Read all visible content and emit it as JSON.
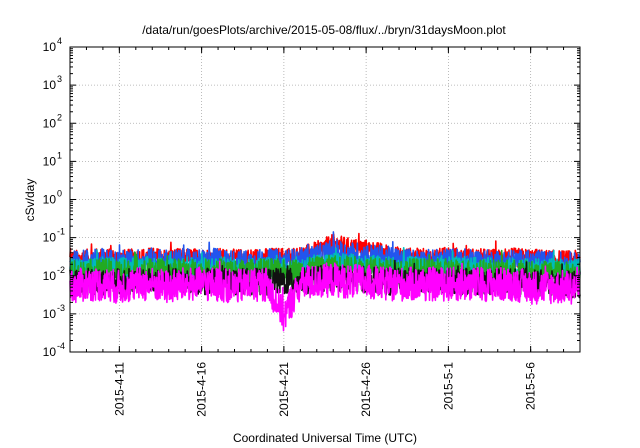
{
  "chart_data": {
    "type": "line",
    "title": "/data/run/goesPlots/archive/2015-05-08/flux/../bryn/31daysMoon.plot",
    "xlabel": "Coordinated Universal Time (UTC)",
    "ylabel": "cSv/day",
    "yscale": "log",
    "ylim": [
      0.0001,
      10000
    ],
    "xlim": [
      "2015-04-08",
      "2015-05-09"
    ],
    "grid": true,
    "y_ticks": [
      {
        "base": "10",
        "exp": "-4",
        "value": 0.0001
      },
      {
        "base": "10",
        "exp": "-3",
        "value": 0.001
      },
      {
        "base": "10",
        "exp": "-2",
        "value": 0.01
      },
      {
        "base": "10",
        "exp": "-1",
        "value": 0.1
      },
      {
        "base": "10",
        "exp": "0",
        "value": 1
      },
      {
        "base": "10",
        "exp": "1",
        "value": 10
      },
      {
        "base": "10",
        "exp": "2",
        "value": 100
      },
      {
        "base": "10",
        "exp": "3",
        "value": 1000
      },
      {
        "base": "10",
        "exp": "4",
        "value": 10000
      }
    ],
    "x_ticks": [
      {
        "label": "2015-4-11",
        "day": 3
      },
      {
        "label": "2015-4-16",
        "day": 8
      },
      {
        "label": "2015-4-21",
        "day": 13
      },
      {
        "label": "2015-4-26",
        "day": 18
      },
      {
        "label": "2015-5-1",
        "day": 23
      },
      {
        "label": "2015-5-6",
        "day": 28
      }
    ],
    "series": [
      {
        "name": "red",
        "color": "#ff0000",
        "base": 0.027,
        "noise": 0.25,
        "points": [
          [
            0,
            0.026
          ],
          [
            1,
            0.028
          ],
          [
            2,
            0.03
          ],
          [
            3,
            0.027
          ],
          [
            4,
            0.029
          ],
          [
            5,
            0.031
          ],
          [
            6,
            0.028
          ],
          [
            7,
            0.03
          ],
          [
            8,
            0.029
          ],
          [
            9,
            0.03
          ],
          [
            10,
            0.028
          ],
          [
            11,
            0.029
          ],
          [
            12,
            0.03
          ],
          [
            13,
            0.031
          ],
          [
            14,
            0.033
          ],
          [
            15,
            0.045
          ],
          [
            16,
            0.07
          ],
          [
            17,
            0.055
          ],
          [
            18,
            0.05
          ],
          [
            19,
            0.04
          ],
          [
            20,
            0.032
          ],
          [
            21,
            0.03
          ],
          [
            22,
            0.029
          ],
          [
            23,
            0.031
          ],
          [
            24,
            0.03
          ],
          [
            25,
            0.029
          ],
          [
            26,
            0.028
          ],
          [
            27,
            0.03
          ],
          [
            28,
            0.029
          ],
          [
            29,
            0.027
          ],
          [
            30,
            0.026
          ],
          [
            31,
            0.026
          ]
        ]
      },
      {
        "name": "blue",
        "color": "#2255ee",
        "base": 0.022,
        "noise": 0.35,
        "points": [
          [
            0,
            0.02
          ],
          [
            1,
            0.022
          ],
          [
            2,
            0.024
          ],
          [
            3,
            0.021
          ],
          [
            4,
            0.023
          ],
          [
            5,
            0.024
          ],
          [
            6,
            0.022
          ],
          [
            7,
            0.023
          ],
          [
            8,
            0.022
          ],
          [
            9,
            0.024
          ],
          [
            10,
            0.021
          ],
          [
            11,
            0.022
          ],
          [
            12,
            0.023
          ],
          [
            13,
            0.022
          ],
          [
            14,
            0.024
          ],
          [
            15,
            0.03
          ],
          [
            16,
            0.04
          ],
          [
            17,
            0.035
          ],
          [
            18,
            0.032
          ],
          [
            19,
            0.028
          ],
          [
            20,
            0.024
          ],
          [
            21,
            0.023
          ],
          [
            22,
            0.022
          ],
          [
            23,
            0.024
          ],
          [
            24,
            0.023
          ],
          [
            25,
            0.022
          ],
          [
            26,
            0.021
          ],
          [
            27,
            0.022
          ],
          [
            28,
            0.021
          ],
          [
            29,
            0.02
          ],
          [
            30,
            0.019
          ],
          [
            31,
            0.019
          ]
        ]
      },
      {
        "name": "cyan",
        "color": "#00bbbb",
        "base": 0.015,
        "noise": 0.3,
        "points": [
          [
            0,
            0.014
          ],
          [
            1,
            0.015
          ],
          [
            2,
            0.016
          ],
          [
            3,
            0.015
          ],
          [
            4,
            0.016
          ],
          [
            5,
            0.016
          ],
          [
            6,
            0.015
          ],
          [
            7,
            0.016
          ],
          [
            8,
            0.015
          ],
          [
            9,
            0.016
          ],
          [
            10,
            0.015
          ],
          [
            11,
            0.015
          ],
          [
            12,
            0.016
          ],
          [
            13,
            0.015
          ],
          [
            14,
            0.016
          ],
          [
            15,
            0.018
          ],
          [
            16,
            0.02
          ],
          [
            17,
            0.019
          ],
          [
            18,
            0.018
          ],
          [
            19,
            0.017
          ],
          [
            20,
            0.016
          ],
          [
            21,
            0.016
          ],
          [
            22,
            0.015
          ],
          [
            23,
            0.016
          ],
          [
            24,
            0.016
          ],
          [
            25,
            0.015
          ],
          [
            26,
            0.015
          ],
          [
            27,
            0.015
          ],
          [
            28,
            0.014
          ],
          [
            29,
            0.014
          ],
          [
            30,
            0.014
          ],
          [
            31,
            0.014
          ]
        ]
      },
      {
        "name": "green",
        "color": "#22aa22",
        "base": 0.012,
        "noise": 0.35,
        "points": [
          [
            0,
            0.011
          ],
          [
            1,
            0.012
          ],
          [
            2,
            0.013
          ],
          [
            3,
            0.012
          ],
          [
            4,
            0.012
          ],
          [
            5,
            0.013
          ],
          [
            6,
            0.012
          ],
          [
            7,
            0.013
          ],
          [
            8,
            0.012
          ],
          [
            9,
            0.013
          ],
          [
            10,
            0.012
          ],
          [
            11,
            0.012
          ],
          [
            12,
            0.013
          ],
          [
            13,
            0.012
          ],
          [
            14,
            0.013
          ],
          [
            15,
            0.014
          ],
          [
            16,
            0.016
          ],
          [
            17,
            0.015
          ],
          [
            18,
            0.014
          ],
          [
            19,
            0.013
          ],
          [
            20,
            0.013
          ],
          [
            21,
            0.013
          ],
          [
            22,
            0.012
          ],
          [
            23,
            0.013
          ],
          [
            24,
            0.012
          ],
          [
            25,
            0.012
          ],
          [
            26,
            0.012
          ],
          [
            27,
            0.012
          ],
          [
            28,
            0.011
          ],
          [
            29,
            0.011
          ],
          [
            30,
            0.011
          ],
          [
            31,
            0.011
          ]
        ]
      },
      {
        "name": "black",
        "color": "#111111",
        "base": 0.007,
        "noise": 0.35,
        "points": [
          [
            0,
            0.007
          ],
          [
            1,
            0.007
          ],
          [
            2,
            0.007
          ],
          [
            3,
            0.007
          ],
          [
            4,
            0.007
          ],
          [
            5,
            0.007
          ],
          [
            6,
            0.007
          ],
          [
            7,
            0.007
          ],
          [
            8,
            0.007
          ],
          [
            9,
            0.007
          ],
          [
            10,
            0.007
          ],
          [
            11,
            0.007
          ],
          [
            12,
            0.007
          ],
          [
            13,
            0.007
          ],
          [
            14,
            0.007
          ],
          [
            15,
            0.008
          ],
          [
            16,
            0.009
          ],
          [
            17,
            0.008
          ],
          [
            18,
            0.008
          ],
          [
            19,
            0.007
          ],
          [
            20,
            0.007
          ],
          [
            21,
            0.007
          ],
          [
            22,
            0.007
          ],
          [
            23,
            0.007
          ],
          [
            24,
            0.007
          ],
          [
            25,
            0.007
          ],
          [
            26,
            0.007
          ],
          [
            27,
            0.007
          ],
          [
            28,
            0.007
          ],
          [
            29,
            0.006
          ],
          [
            30,
            0.006
          ],
          [
            31,
            0.006
          ]
        ]
      },
      {
        "name": "magenta",
        "color": "#ff00ff",
        "base": 0.006,
        "noise": 0.45,
        "points": [
          [
            0,
            0.005
          ],
          [
            1,
            0.006
          ],
          [
            2,
            0.006
          ],
          [
            3,
            0.005
          ],
          [
            4,
            0.006
          ],
          [
            5,
            0.006
          ],
          [
            6,
            0.005
          ],
          [
            7,
            0.006
          ],
          [
            8,
            0.006
          ],
          [
            9,
            0.006
          ],
          [
            10,
            0.005
          ],
          [
            11,
            0.006
          ],
          [
            12,
            0.006
          ],
          [
            13,
            0.0009
          ],
          [
            14,
            0.006
          ],
          [
            15,
            0.007
          ],
          [
            16,
            0.008
          ],
          [
            17,
            0.007
          ],
          [
            18,
            0.007
          ],
          [
            19,
            0.006
          ],
          [
            20,
            0.006
          ],
          [
            21,
            0.006
          ],
          [
            22,
            0.006
          ],
          [
            23,
            0.006
          ],
          [
            24,
            0.006
          ],
          [
            25,
            0.006
          ],
          [
            26,
            0.006
          ],
          [
            27,
            0.006
          ],
          [
            28,
            0.005
          ],
          [
            29,
            0.005
          ],
          [
            30,
            0.005
          ],
          [
            31,
            0.005
          ]
        ]
      }
    ]
  }
}
